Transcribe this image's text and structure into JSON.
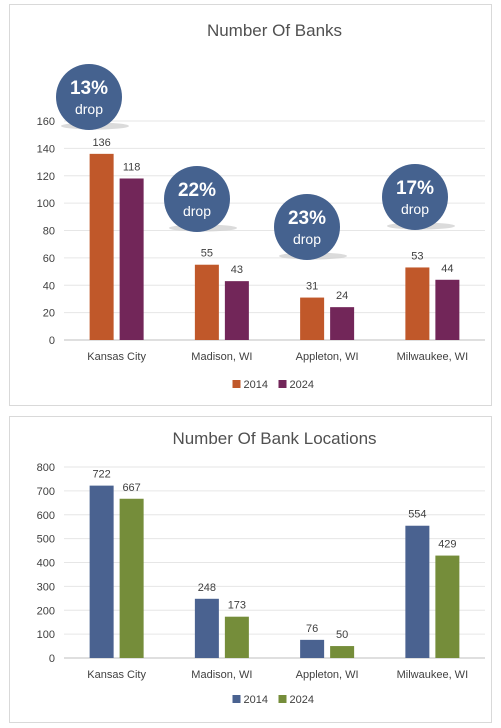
{
  "colors": {
    "chart1_2014": "#c0582a",
    "chart1_2024": "#722659",
    "chart2_2014": "#4a6290",
    "chart2_2024": "#758d3a",
    "bubble": "#45628f"
  },
  "chart_data": [
    {
      "type": "bar",
      "title": "Number Of Banks",
      "categories": [
        "Kansas City",
        "Madison, WI",
        "Appleton, WI",
        "Milwaukee, WI"
      ],
      "series": [
        {
          "name": "2014",
          "values": [
            136,
            55,
            31,
            53
          ]
        },
        {
          "name": "2024",
          "values": [
            118,
            43,
            24,
            44
          ]
        }
      ],
      "ylim": [
        0,
        160
      ],
      "yticks": [
        0,
        20,
        40,
        60,
        80,
        100,
        120,
        140,
        160
      ],
      "grid": true,
      "legend": "bottom",
      "annotations": [
        {
          "category": "Kansas City",
          "value": "13%",
          "label": "drop"
        },
        {
          "category": "Madison, WI",
          "value": "22%",
          "label": "drop"
        },
        {
          "category": "Appleton, WI",
          "value": "23%",
          "label": "drop"
        },
        {
          "category": "Milwaukee, WI",
          "value": "17%",
          "label": "drop"
        }
      ]
    },
    {
      "type": "bar",
      "title": "Number Of Bank Locations",
      "categories": [
        "Kansas City",
        "Madison, WI",
        "Appleton, WI",
        "Milwaukee, WI"
      ],
      "series": [
        {
          "name": "2014",
          "values": [
            722,
            248,
            76,
            554
          ]
        },
        {
          "name": "2024",
          "values": [
            667,
            173,
            50,
            429
          ]
        }
      ],
      "ylim": [
        0,
        800
      ],
      "yticks": [
        0,
        100,
        200,
        300,
        400,
        500,
        600,
        700,
        800
      ],
      "grid": true,
      "legend": "bottom"
    }
  ]
}
